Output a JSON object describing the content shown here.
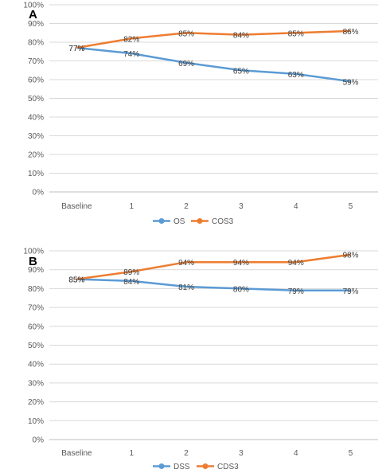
{
  "colors": {
    "series1": "#5b9bd5",
    "series2": "#ed7d31"
  },
  "chart_data": [
    {
      "type": "line",
      "panel_label": "A",
      "categories": [
        "Baseline",
        "1",
        "2",
        "3",
        "4",
        "5"
      ],
      "y_ticks": [
        "0%",
        "10%",
        "20%",
        "30%",
        "40%",
        "50%",
        "60%",
        "70%",
        "80%",
        "90%",
        "100%"
      ],
      "ylim": [
        0,
        100
      ],
      "grid": true,
      "legend_position": "bottom",
      "series": [
        {
          "name": "OS",
          "values": [
            77,
            74,
            69,
            65,
            63,
            59
          ],
          "labels": [
            "77%",
            "74%",
            "69%",
            "65%",
            "63%",
            "59%"
          ]
        },
        {
          "name": "COS3",
          "values": [
            77,
            82,
            85,
            84,
            85,
            86
          ],
          "labels": [
            "77%",
            "82%",
            "85%",
            "84%",
            "85%",
            "86%"
          ]
        }
      ]
    },
    {
      "type": "line",
      "panel_label": "B",
      "categories": [
        "Baseline",
        "1",
        "2",
        "3",
        "4",
        "5"
      ],
      "y_ticks": [
        "0%",
        "10%",
        "20%",
        "30%",
        "40%",
        "50%",
        "60%",
        "70%",
        "80%",
        "90%",
        "100%"
      ],
      "ylim": [
        0,
        100
      ],
      "grid": true,
      "legend_position": "bottom",
      "series": [
        {
          "name": "DSS",
          "values": [
            85,
            84,
            81,
            80,
            79,
            79
          ],
          "labels": [
            "85%",
            "84%",
            "81%",
            "80%",
            "79%",
            "79%"
          ]
        },
        {
          "name": "CDS3",
          "values": [
            85,
            89,
            94,
            94,
            94,
            98
          ],
          "labels": [
            "85%",
            "89%",
            "94%",
            "94%",
            "94%",
            "98%"
          ]
        }
      ]
    }
  ]
}
